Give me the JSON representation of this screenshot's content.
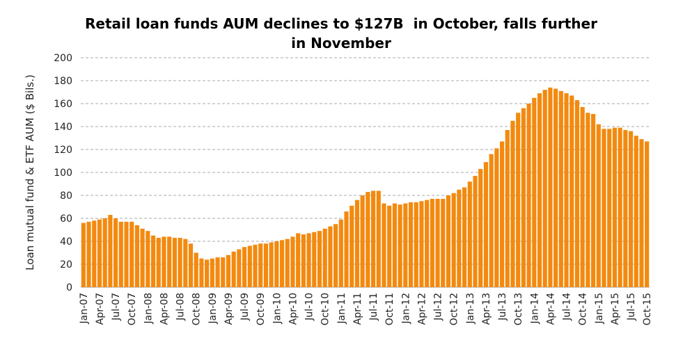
{
  "chart_data": {
    "type": "bar",
    "title": "Retail loan funds AUM declines to $127B  in October, falls further in November",
    "y_label": "Loan mutual fund & ETF AUM ($ Bils.)",
    "color": "#f28a0f",
    "ylim": [
      0,
      200
    ],
    "yticks": [
      0,
      20,
      40,
      60,
      80,
      100,
      120,
      140,
      160,
      180,
      200
    ],
    "grid": true,
    "categories": [
      "Jan-07",
      null,
      null,
      "Apr-07",
      null,
      null,
      "Jul-07",
      null,
      null,
      "Oct-07",
      null,
      null,
      "Jan-08",
      null,
      null,
      "Apr-08",
      null,
      null,
      "Jul-08",
      null,
      null,
      "Oct-08",
      null,
      null,
      "Jan-09",
      null,
      null,
      "Apr-09",
      null,
      null,
      "Jul-09",
      null,
      null,
      "Oct-09",
      null,
      null,
      "Jan-10",
      null,
      null,
      "Apr-10",
      null,
      null,
      "Jul-10",
      null,
      null,
      "Oct-10",
      null,
      null,
      "Jan-11",
      null,
      null,
      "Apr-11",
      null,
      null,
      "Jul-11",
      null,
      null,
      "Oct-11",
      null,
      null,
      "Jan-12",
      null,
      null,
      "Apr-12",
      null,
      null,
      "Jul-12",
      null,
      null,
      "Oct-12",
      null,
      null,
      "Jan-13",
      null,
      null,
      "Apr-13",
      null,
      null,
      "Jul-13",
      null,
      null,
      "Oct-13",
      null,
      null,
      "Jan-14",
      null,
      null,
      "Apr-14",
      null,
      null,
      "Jul-14",
      null,
      null,
      "Oct-14",
      null,
      null,
      "Jan-15",
      null,
      null,
      "Apr-15",
      null,
      null,
      "Jul-15",
      null,
      null,
      "Oct-15"
    ],
    "values": [
      56,
      57,
      58,
      59,
      60,
      63,
      60,
      57,
      57,
      57,
      54,
      51,
      49,
      45,
      43,
      44,
      44,
      43,
      43,
      42,
      38,
      30,
      25,
      24,
      25,
      26,
      26,
      28,
      31,
      33,
      35,
      36,
      37,
      38,
      38,
      39,
      40,
      41,
      42,
      44,
      47,
      46,
      47,
      48,
      49,
      51,
      53,
      55,
      59,
      66,
      71,
      76,
      80,
      83,
      84,
      84,
      73,
      71,
      73,
      72,
      73,
      74,
      74,
      75,
      76,
      77,
      77,
      77,
      80,
      82,
      85,
      87,
      92,
      97,
      103,
      109,
      116,
      121,
      127,
      137,
      145,
      152,
      156,
      160,
      165,
      169,
      172,
      174,
      173,
      171,
      169,
      167,
      163,
      157,
      152,
      151,
      142,
      138,
      138,
      139,
      139,
      137,
      136,
      132,
      129,
      127
    ]
  }
}
